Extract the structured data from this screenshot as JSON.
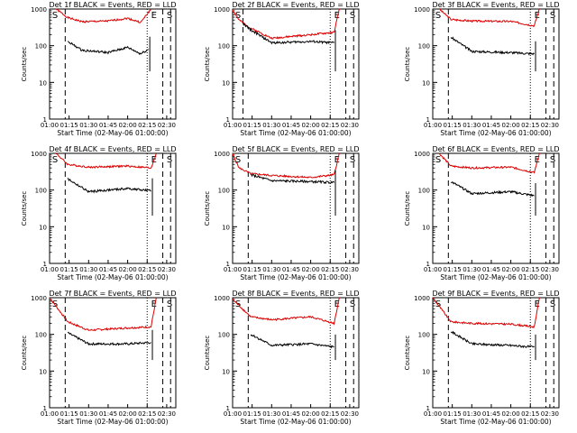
{
  "figure": {
    "y_axis_label": "Counts/sec",
    "x_axis_label": "Start Time (02-May-06 01:00:00)",
    "x_ticks": [
      "01:00",
      "01:15",
      "01:30",
      "01:45",
      "02:00",
      "02:15",
      "02:30"
    ],
    "y_ticks": [
      "1",
      "10",
      "100",
      "1000"
    ],
    "series_colors": {
      "events": "#000000",
      "lld": "#dd0000"
    }
  },
  "chart_data": [
    {
      "type": "line",
      "title": "Det 1f BLACK = Events, RED = LLD",
      "xlabel": "Start Time (02-May-06 01:00:00)",
      "ylabel": "Counts/sec",
      "ylog": true,
      "ylim": [
        1,
        1000
      ],
      "xlim_minutes": [
        0,
        97
      ],
      "markers": [
        "S",
        "E",
        "S"
      ],
      "events_x": [
        14,
        25,
        45,
        60,
        70,
        76
      ],
      "events_y": [
        130,
        75,
        65,
        90,
        60,
        80
      ],
      "lld_x": [
        5,
        14,
        25,
        45,
        60,
        70,
        78
      ],
      "lld_y": [
        1000,
        580,
        450,
        470,
        560,
        430,
        1000
      ],
      "dashed_lines": [
        12,
        87,
        93
      ],
      "dotted_lines": [
        75
      ]
    },
    {
      "type": "line",
      "title": "Det 2f BLACK = Events, RED = LLD",
      "xlabel": "Start Time (02-May-06 01:00:00)",
      "ylabel": "Counts/sec",
      "ylog": true,
      "ylim": [
        1,
        1000
      ],
      "xlim_minutes": [
        0,
        97
      ],
      "markers": [
        "S",
        "E",
        "S"
      ],
      "events_x": [
        8,
        14,
        30,
        60,
        78
      ],
      "events_y": [
        400,
        270,
        120,
        130,
        120
      ],
      "lld_x": [
        0,
        5,
        14,
        30,
        60,
        78,
        82
      ],
      "lld_y": [
        950,
        500,
        300,
        160,
        200,
        230,
        1000
      ],
      "dashed_lines": [
        8,
        87,
        93
      ],
      "dotted_lines": [
        75
      ]
    },
    {
      "type": "line",
      "title": "Det 3f BLACK = Events, RED = LLD",
      "xlabel": "Start Time (02-May-06 01:00:00)",
      "ylabel": "Counts/sec",
      "ylog": true,
      "ylim": [
        1,
        1000
      ],
      "xlim_minutes": [
        0,
        97
      ],
      "markers": [
        "S",
        "E",
        "S"
      ],
      "events_x": [
        14,
        30,
        60,
        78
      ],
      "events_y": [
        170,
        70,
        65,
        60
      ],
      "lld_x": [
        5,
        14,
        30,
        60,
        78,
        82
      ],
      "lld_y": [
        1000,
        520,
        470,
        460,
        350,
        1000
      ],
      "dashed_lines": [
        12,
        87,
        93
      ],
      "dotted_lines": [
        75
      ]
    },
    {
      "type": "line",
      "title": "Det 4f BLACK = Events, RED = LLD",
      "xlabel": "Start Time (02-May-06 01:00:00)",
      "ylabel": "Counts/sec",
      "ylog": true,
      "ylim": [
        1,
        1000
      ],
      "xlim_minutes": [
        0,
        97
      ],
      "markers": [
        "S",
        "E",
        "S"
      ],
      "events_x": [
        14,
        30,
        60,
        78
      ],
      "events_y": [
        200,
        90,
        110,
        95
      ],
      "lld_x": [
        5,
        14,
        30,
        60,
        78,
        82
      ],
      "lld_y": [
        1000,
        500,
        420,
        450,
        400,
        1000
      ],
      "dashed_lines": [
        12,
        87,
        93
      ],
      "dotted_lines": [
        75
      ]
    },
    {
      "type": "line",
      "title": "Det 5f BLACK = Events, RED = LLD",
      "xlabel": "Start Time (02-May-06 01:00:00)",
      "ylabel": "Counts/sec",
      "ylog": true,
      "ylim": [
        1,
        1000
      ],
      "xlim_minutes": [
        0,
        97
      ],
      "markers": [
        "S",
        "E",
        "S"
      ],
      "events_x": [
        14,
        30,
        60,
        78
      ],
      "events_y": [
        260,
        180,
        170,
        160
      ],
      "lld_x": [
        0,
        5,
        14,
        30,
        60,
        78,
        82
      ],
      "lld_y": [
        950,
        400,
        280,
        250,
        220,
        260,
        1000
      ],
      "dashed_lines": [
        12,
        87,
        93
      ],
      "dotted_lines": [
        75
      ]
    },
    {
      "type": "line",
      "title": "Det 6f BLACK = Events, RED = LLD",
      "xlabel": "Start Time (02-May-06 01:00:00)",
      "ylabel": "Counts/sec",
      "ylog": true,
      "ylim": [
        1,
        1000
      ],
      "xlim_minutes": [
        0,
        97
      ],
      "markers": [
        "S",
        "E",
        "S"
      ],
      "events_x": [
        14,
        30,
        60,
        78
      ],
      "events_y": [
        170,
        80,
        90,
        70
      ],
      "lld_x": [
        5,
        14,
        30,
        60,
        78,
        82
      ],
      "lld_y": [
        1000,
        450,
        400,
        420,
        300,
        1000
      ],
      "dashed_lines": [
        12,
        87,
        93
      ],
      "dotted_lines": [
        75
      ]
    },
    {
      "type": "line",
      "title": "Det 7f BLACK = Events, RED = LLD",
      "xlabel": "Start Time (02-May-06 01:00:00)",
      "ylabel": "Counts/sec",
      "ylog": true,
      "ylim": [
        1,
        1000
      ],
      "xlim_minutes": [
        0,
        97
      ],
      "markers": [
        "S",
        "E",
        "S"
      ],
      "events_x": [
        14,
        30,
        60,
        78
      ],
      "events_y": [
        110,
        55,
        55,
        60
      ],
      "lld_x": [
        0,
        14,
        30,
        60,
        78,
        82
      ],
      "lld_y": [
        1000,
        220,
        130,
        150,
        160,
        1000
      ],
      "dashed_lines": [
        12,
        87,
        93
      ],
      "dotted_lines": [
        75
      ]
    },
    {
      "type": "line",
      "title": "Det 8f BLACK = Events, RED = LLD",
      "xlabel": "Start Time (02-May-06 01:00:00)",
      "ylabel": "Counts/sec",
      "ylog": true,
      "ylim": [
        1,
        1000
      ],
      "xlim_minutes": [
        0,
        97
      ],
      "markers": [
        "S",
        "E",
        "S"
      ],
      "events_x": [
        14,
        30,
        60,
        78
      ],
      "events_y": [
        100,
        50,
        55,
        45
      ],
      "lld_x": [
        0,
        14,
        30,
        60,
        78,
        82
      ],
      "lld_y": [
        900,
        300,
        250,
        300,
        200,
        1000
      ],
      "dashed_lines": [
        12,
        87,
        93
      ],
      "dotted_lines": [
        75
      ]
    },
    {
      "type": "line",
      "title": "Det 9f BLACK = Events, RED = LLD",
      "xlabel": "Start Time (02-May-06 01:00:00)",
      "ylabel": "Counts/sec",
      "ylog": true,
      "ylim": [
        1,
        1000
      ],
      "xlim_minutes": [
        0,
        97
      ],
      "markers": [
        "S",
        "E",
        "S"
      ],
      "events_x": [
        14,
        30,
        60,
        78
      ],
      "events_y": [
        120,
        55,
        50,
        45
      ],
      "lld_x": [
        0,
        14,
        30,
        60,
        78,
        82
      ],
      "lld_y": [
        1000,
        220,
        200,
        190,
        160,
        1000
      ],
      "dashed_lines": [
        12,
        87,
        93
      ],
      "dotted_lines": [
        75
      ]
    }
  ]
}
